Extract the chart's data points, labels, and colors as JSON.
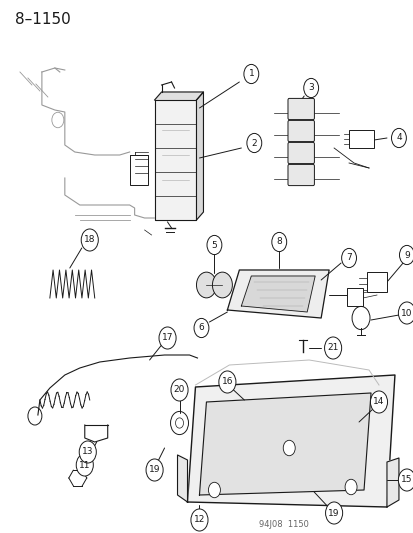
{
  "title": "8–1150",
  "footer": "94J08  1150",
  "bg_color": "#ffffff",
  "line_color": "#1a1a1a",
  "gray": "#888888",
  "light_gray": "#cccccc",
  "font_size_title": 11,
  "font_size_parts": 6.5,
  "font_size_footer": 6,
  "circle_r": 0.018
}
